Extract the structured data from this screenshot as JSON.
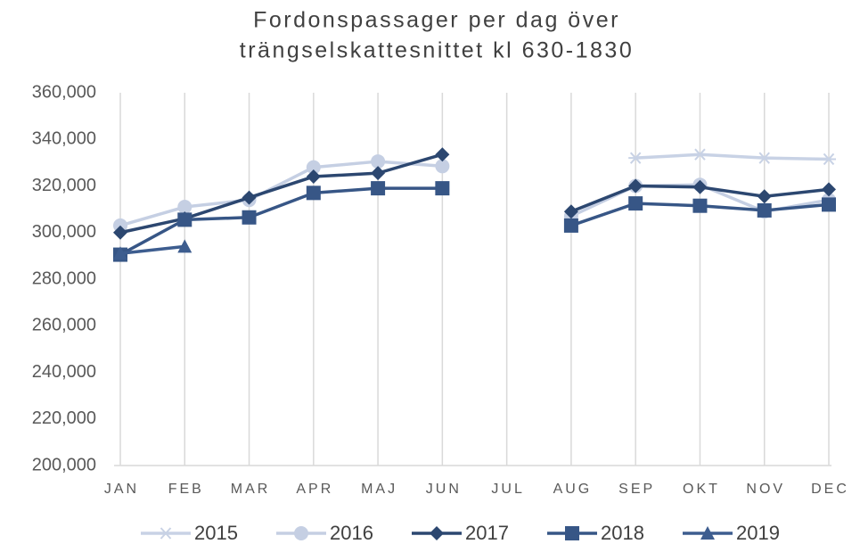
{
  "chart_data": {
    "type": "line",
    "title": [
      "Fordonspassager per dag över",
      "trängselskattesnittet kl 630-1830"
    ],
    "categories": [
      "JAN",
      "FEB",
      "MAR",
      "APR",
      "MAJ",
      "JUN",
      "JUL",
      "AUG",
      "SEP",
      "OKT",
      "NOV",
      "DEC"
    ],
    "series": [
      {
        "name": "2015",
        "color": "#c8d2e5",
        "marker": "star",
        "values": [
          null,
          null,
          null,
          null,
          null,
          null,
          null,
          null,
          332000,
          333500,
          332000,
          331500
        ]
      },
      {
        "name": "2016",
        "color": "#c5cfe3",
        "marker": "circle",
        "values": [
          303000,
          311000,
          314000,
          328000,
          330500,
          328500,
          null,
          307000,
          320000,
          320500,
          309000,
          314000
        ]
      },
      {
        "name": "2017",
        "color": "#2c4770",
        "marker": "diamond",
        "values": [
          300000,
          306000,
          315000,
          324000,
          325500,
          333500,
          null,
          309000,
          320000,
          319500,
          315500,
          318500
        ]
      },
      {
        "name": "2018",
        "color": "#375686",
        "marker": "square",
        "values": [
          290500,
          305500,
          306500,
          317000,
          319000,
          319000,
          null,
          303000,
          312500,
          311500,
          309500,
          312000
        ]
      },
      {
        "name": "2019",
        "color": "#3d5d8f",
        "marker": "triangle",
        "values": [
          291000,
          294000,
          null,
          null,
          null,
          null,
          null,
          null,
          null,
          null,
          null,
          null
        ]
      }
    ],
    "ylim": [
      200000,
      360000
    ],
    "yticks": [
      {
        "value": 200000,
        "label": "200,000"
      },
      {
        "value": 220000,
        "label": "220,000"
      },
      {
        "value": 240000,
        "label": "240,000"
      },
      {
        "value": 260000,
        "label": "260,000"
      },
      {
        "value": 280000,
        "label": "280,000"
      },
      {
        "value": 300000,
        "label": "300,000"
      },
      {
        "value": 320000,
        "label": "320,000"
      },
      {
        "value": 340000,
        "label": "340,000"
      },
      {
        "value": 360000,
        "label": "360,000"
      }
    ],
    "grid": "vertical",
    "legend": "bottom"
  }
}
